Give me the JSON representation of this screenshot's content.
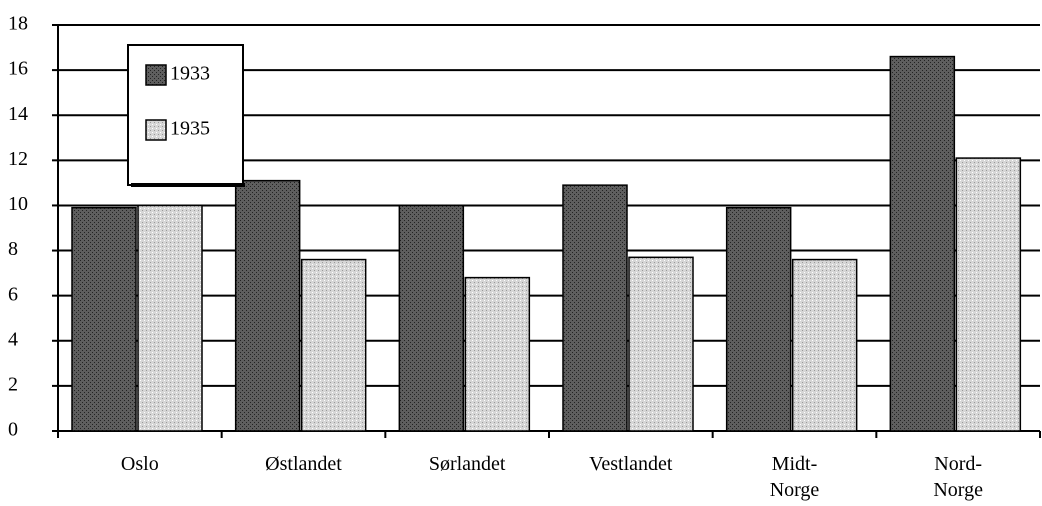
{
  "chart_data": {
    "type": "bar",
    "categories": [
      "Oslo",
      "Østlandet",
      "Sørlandet",
      "Vestlandet",
      "Midt-\nNorge",
      "Nord-\nNorge"
    ],
    "series": [
      {
        "name": "1933",
        "color": "#5e5e5e",
        "values": [
          9.9,
          11.1,
          10.0,
          10.9,
          9.9,
          16.6
        ]
      },
      {
        "name": "1935",
        "color": "#d6d6d6",
        "values": [
          10.0,
          7.6,
          6.8,
          7.7,
          7.6,
          12.1
        ]
      }
    ],
    "ylim": [
      0,
      18
    ],
    "yticks": [
      0,
      2,
      4,
      6,
      8,
      10,
      12,
      14,
      16,
      18
    ],
    "grid": true,
    "legend": "upper left"
  }
}
